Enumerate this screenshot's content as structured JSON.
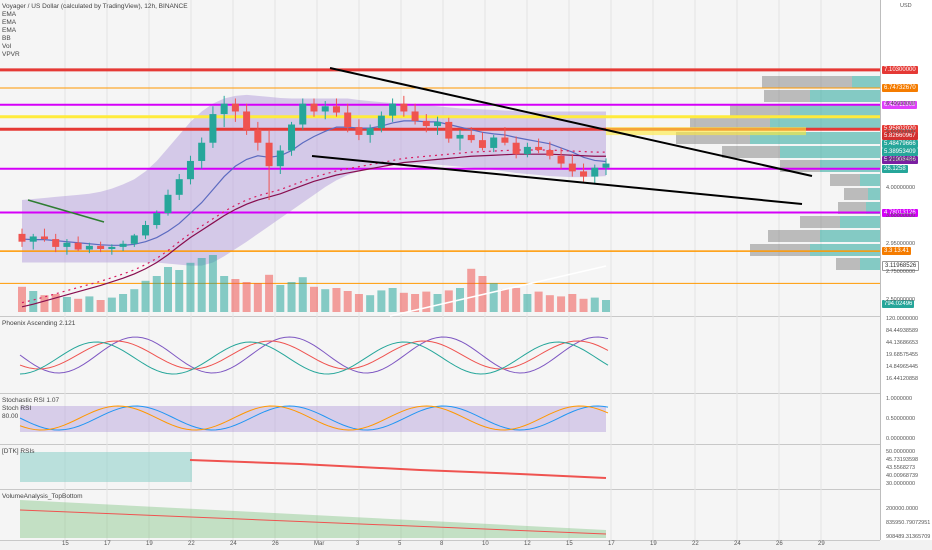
{
  "header": {
    "title": "Voyager / US Dollar (calculated by TradingView), 12h, BINANCE",
    "indicators": [
      "EMA",
      "EMA",
      "EMA",
      "BB",
      "Vol",
      "VPVR"
    ],
    "currency": "USD"
  },
  "panes": {
    "p1_title": "Phoenix Ascending 2.121",
    "p2_title": "Stochastic RSI 1.07",
    "p2_sub": "Stoch RSI",
    "p2_left_level": "80.00",
    "p3_title": "[DTK] RSIs",
    "p4_title": "VolumeAnalysis_TopBottom"
  },
  "price_tags": [
    {
      "text": "7.10300000",
      "color": "#e53935",
      "v": 7.1
    },
    {
      "text": "6.74732670",
      "color": "#f57c00",
      "v": 6.75
    },
    {
      "text": "6.42711909",
      "color": "#e040fb",
      "v": 6.43
    },
    {
      "text": "5.95802020",
      "color": "#e53935",
      "v": 5.96
    },
    {
      "text": "5.82660967",
      "color": "#d32f2f",
      "v": 5.83
    },
    {
      "text": "5.48479666",
      "color": "#26a69a",
      "v": 5.68
    },
    {
      "text": "5.38953409",
      "color": "#26a69a",
      "v": 5.52
    },
    {
      "text": "5.21908486",
      "color": "#7b1fa2",
      "v": 5.36
    },
    {
      "text": "26.1258",
      "color": "#26a69a",
      "v": 5.2
    },
    {
      "text": "4.78013126",
      "color": "#d500f9",
      "v": 4.36
    },
    {
      "text": "3.3 13.41",
      "color": "#f57c00",
      "v": 3.62
    },
    {
      "text": "3.11968526",
      "color": "#ffffff",
      "v": 3.35
    }
  ],
  "axis_ticks": [
    "6.40000000",
    "5.60000000",
    "4.80000000",
    "4.00000000",
    "3.60000000",
    "2.95000000",
    "2.75000000",
    "2.50000000"
  ],
  "p1_ticks": [
    "120.0000000",
    "84.44938589",
    "44.13686653",
    "19.68575455",
    "14.84965445",
    "16.44120858"
  ],
  "p2_ticks": [
    "1.0000000",
    "0.50000000",
    "0.00000000"
  ],
  "p3_ticks": [
    "50.0000000",
    "45.73193598",
    "43.5568273",
    "40.00968739",
    "30.0000000"
  ],
  "p4_ticks": [
    "200000.0000",
    "835950.79072951",
    "908489.31365709"
  ],
  "vol_tag": "794.02496",
  "x_ticks": [
    "15",
    "17",
    "19",
    "22",
    "24",
    "26",
    "Mar",
    "3",
    "5",
    "8",
    "10",
    "12",
    "15",
    "17",
    "19",
    "22",
    "24",
    "26",
    "29"
  ],
  "colors": {
    "up": "#26a69a",
    "down": "#ef5350",
    "band": "#b39ddb",
    "hline_red": "#e53935",
    "hline_magenta": "#d500f9",
    "hline_orange": "#ff9800",
    "hline_yellow": "#ffeb3b"
  },
  "chart_data": {
    "type": "candlestick",
    "title": "Voyager / US Dollar (calculated by TradingView), 12h, BINANCE",
    "ylim": [
      2.45,
      7.25
    ],
    "candles": [
      [
        3.95,
        4.05,
        3.7,
        3.8
      ],
      [
        3.8,
        3.95,
        3.65,
        3.9
      ],
      [
        3.9,
        4.05,
        3.8,
        3.85
      ],
      [
        3.85,
        3.95,
        3.6,
        3.7
      ],
      [
        3.7,
        3.85,
        3.55,
        3.78
      ],
      [
        3.78,
        3.9,
        3.62,
        3.65
      ],
      [
        3.65,
        3.78,
        3.58,
        3.72
      ],
      [
        3.72,
        3.8,
        3.6,
        3.66
      ],
      [
        3.66,
        3.75,
        3.55,
        3.7
      ],
      [
        3.7,
        3.82,
        3.62,
        3.76
      ],
      [
        3.76,
        3.95,
        3.7,
        3.92
      ],
      [
        3.92,
        4.2,
        3.85,
        4.12
      ],
      [
        4.12,
        4.4,
        4.05,
        4.35
      ],
      [
        4.35,
        4.8,
        4.3,
        4.7
      ],
      [
        4.7,
        5.1,
        4.6,
        5.0
      ],
      [
        5.0,
        5.45,
        4.9,
        5.35
      ],
      [
        5.35,
        5.8,
        5.2,
        5.7
      ],
      [
        5.7,
        6.4,
        5.6,
        6.25
      ],
      [
        6.25,
        6.6,
        6.0,
        6.45
      ],
      [
        6.45,
        6.55,
        6.1,
        6.3
      ],
      [
        6.3,
        6.45,
        5.85,
        5.95
      ],
      [
        5.95,
        6.1,
        5.55,
        5.7
      ],
      [
        5.7,
        5.95,
        4.6,
        5.25
      ],
      [
        5.25,
        5.65,
        5.1,
        5.55
      ],
      [
        5.55,
        6.1,
        5.45,
        6.05
      ],
      [
        6.05,
        6.55,
        5.95,
        6.45
      ],
      [
        6.45,
        6.55,
        6.2,
        6.3
      ],
      [
        6.3,
        6.5,
        6.15,
        6.4
      ],
      [
        6.4,
        6.55,
        6.2,
        6.28
      ],
      [
        6.28,
        6.45,
        5.9,
        6.0
      ],
      [
        6.0,
        6.15,
        5.75,
        5.85
      ],
      [
        5.85,
        6.05,
        5.7,
        5.98
      ],
      [
        5.98,
        6.3,
        5.9,
        6.22
      ],
      [
        6.22,
        6.55,
        6.1,
        6.45
      ],
      [
        6.45,
        6.6,
        6.2,
        6.3
      ],
      [
        6.3,
        6.45,
        6.05,
        6.12
      ],
      [
        6.12,
        6.25,
        5.9,
        6.02
      ],
      [
        6.02,
        6.2,
        5.85,
        6.1
      ],
      [
        6.1,
        6.18,
        5.7,
        5.78
      ],
      [
        5.78,
        5.95,
        5.55,
        5.85
      ],
      [
        5.85,
        6.0,
        5.7,
        5.75
      ],
      [
        5.75,
        5.9,
        5.55,
        5.6
      ],
      [
        5.6,
        5.85,
        5.52,
        5.8
      ],
      [
        5.8,
        6.0,
        5.65,
        5.7
      ],
      [
        5.7,
        5.82,
        5.4,
        5.48
      ],
      [
        5.48,
        5.7,
        5.42,
        5.62
      ],
      [
        5.62,
        5.78,
        5.5,
        5.56
      ],
      [
        5.56,
        5.72,
        5.38,
        5.45
      ],
      [
        5.45,
        5.6,
        5.2,
        5.3
      ],
      [
        5.3,
        5.48,
        5.05,
        5.15
      ],
      [
        5.15,
        5.3,
        4.95,
        5.05
      ],
      [
        5.05,
        5.28,
        4.9,
        5.22
      ],
      [
        5.22,
        5.4,
        5.08,
        5.3
      ]
    ],
    "volume": [
      0.42,
      0.35,
      0.28,
      0.3,
      0.25,
      0.22,
      0.26,
      0.2,
      0.24,
      0.3,
      0.38,
      0.52,
      0.6,
      0.75,
      0.7,
      0.82,
      0.9,
      0.95,
      0.6,
      0.55,
      0.5,
      0.48,
      0.62,
      0.45,
      0.5,
      0.58,
      0.42,
      0.38,
      0.4,
      0.35,
      0.3,
      0.28,
      0.36,
      0.4,
      0.32,
      0.3,
      0.34,
      0.3,
      0.36,
      0.4,
      0.72,
      0.6,
      0.48,
      0.38,
      0.4,
      0.3,
      0.34,
      0.28,
      0.26,
      0.3,
      0.22,
      0.24,
      0.2
    ],
    "upper_band": [
      4.6,
      4.62,
      4.64,
      4.66,
      4.68,
      4.7,
      4.72,
      4.76,
      4.82,
      4.9,
      5.0,
      5.15,
      5.35,
      5.6,
      5.85,
      6.1,
      6.3,
      6.45,
      6.55,
      6.6,
      6.62,
      6.6,
      6.58,
      6.56,
      6.55,
      6.55,
      6.55,
      6.55,
      6.55,
      6.55,
      6.52,
      6.5,
      6.48,
      6.46,
      6.45,
      6.44,
      6.42,
      6.4,
      6.38,
      6.36,
      6.35,
      6.34,
      6.33,
      6.32,
      6.31,
      6.3,
      6.3,
      6.3,
      6.3,
      6.3,
      6.3,
      6.3,
      6.3
    ],
    "lower_band": [
      3.4,
      3.4,
      3.4,
      3.4,
      3.4,
      3.4,
      3.4,
      3.4,
      3.4,
      3.4,
      3.4,
      3.4,
      3.4,
      3.38,
      3.36,
      3.34,
      3.34,
      3.4,
      3.52,
      3.66,
      3.8,
      3.95,
      4.1,
      4.25,
      4.4,
      4.55,
      4.7,
      4.85,
      4.98,
      5.08,
      5.15,
      5.2,
      5.25,
      5.28,
      5.3,
      5.3,
      5.3,
      5.28,
      5.26,
      5.24,
      5.22,
      5.2,
      5.18,
      5.15,
      5.12,
      5.1,
      5.08,
      5.06,
      5.05,
      5.04,
      5.04,
      5.05,
      5.06
    ],
    "ema_fast": [
      3.85,
      3.84,
      3.84,
      3.82,
      3.8,
      3.78,
      3.76,
      3.74,
      3.73,
      3.73,
      3.75,
      3.8,
      3.88,
      4.0,
      4.15,
      4.35,
      4.55,
      4.8,
      5.05,
      5.25,
      5.38,
      5.45,
      5.42,
      5.45,
      5.55,
      5.7,
      5.82,
      5.92,
      6.0,
      6.0,
      5.98,
      5.98,
      6.02,
      6.08,
      6.12,
      6.12,
      6.1,
      6.1,
      6.05,
      6.0,
      5.95,
      5.9,
      5.87,
      5.85,
      5.8,
      5.76,
      5.72,
      5.68,
      5.6,
      5.52,
      5.42,
      5.36,
      5.34
    ],
    "ema_slow": [
      2.55,
      2.6,
      2.66,
      2.72,
      2.78,
      2.84,
      2.9,
      2.96,
      3.03,
      3.1,
      3.18,
      3.28,
      3.4,
      3.55,
      3.72,
      3.88,
      4.02,
      4.16,
      4.3,
      4.42,
      4.52,
      4.6,
      4.66,
      4.72,
      4.8,
      4.88,
      4.96,
      5.02,
      5.08,
      5.12,
      5.16,
      5.2,
      5.24,
      5.28,
      5.32,
      5.34,
      5.36,
      5.38,
      5.4,
      5.42,
      5.44,
      5.45,
      5.46,
      5.47,
      5.48,
      5.48,
      5.48,
      5.48,
      5.47,
      5.46,
      5.45,
      5.44,
      5.44
    ]
  }
}
